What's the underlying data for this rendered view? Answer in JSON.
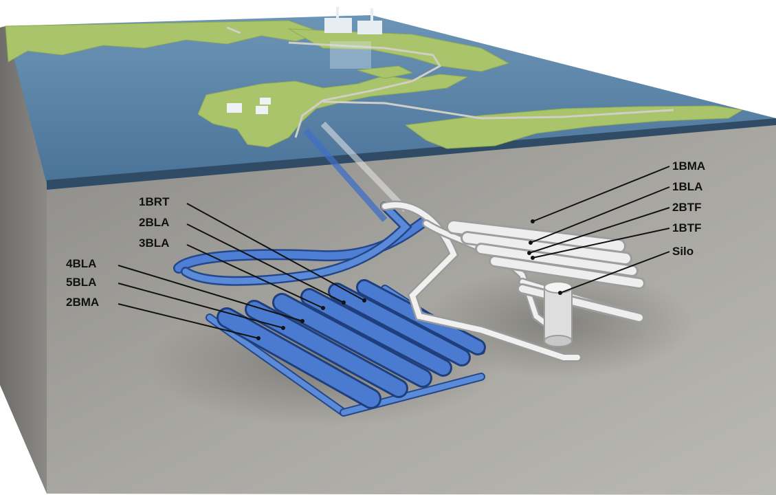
{
  "colors": {
    "sea": "#4f7aa0",
    "land": "#a9c46a",
    "rock": "#a8a7a2",
    "blue_tunnels": "#3f6fc4",
    "white_tunnels": "#e9e9e9"
  },
  "labels_left": [
    "1BRT",
    "2BLA",
    "3BLA",
    "4BLA",
    "5BLA",
    "2BMA"
  ],
  "labels_right": [
    "1BMA",
    "1BLA",
    "2BTF",
    "1BTF",
    "Silo"
  ]
}
